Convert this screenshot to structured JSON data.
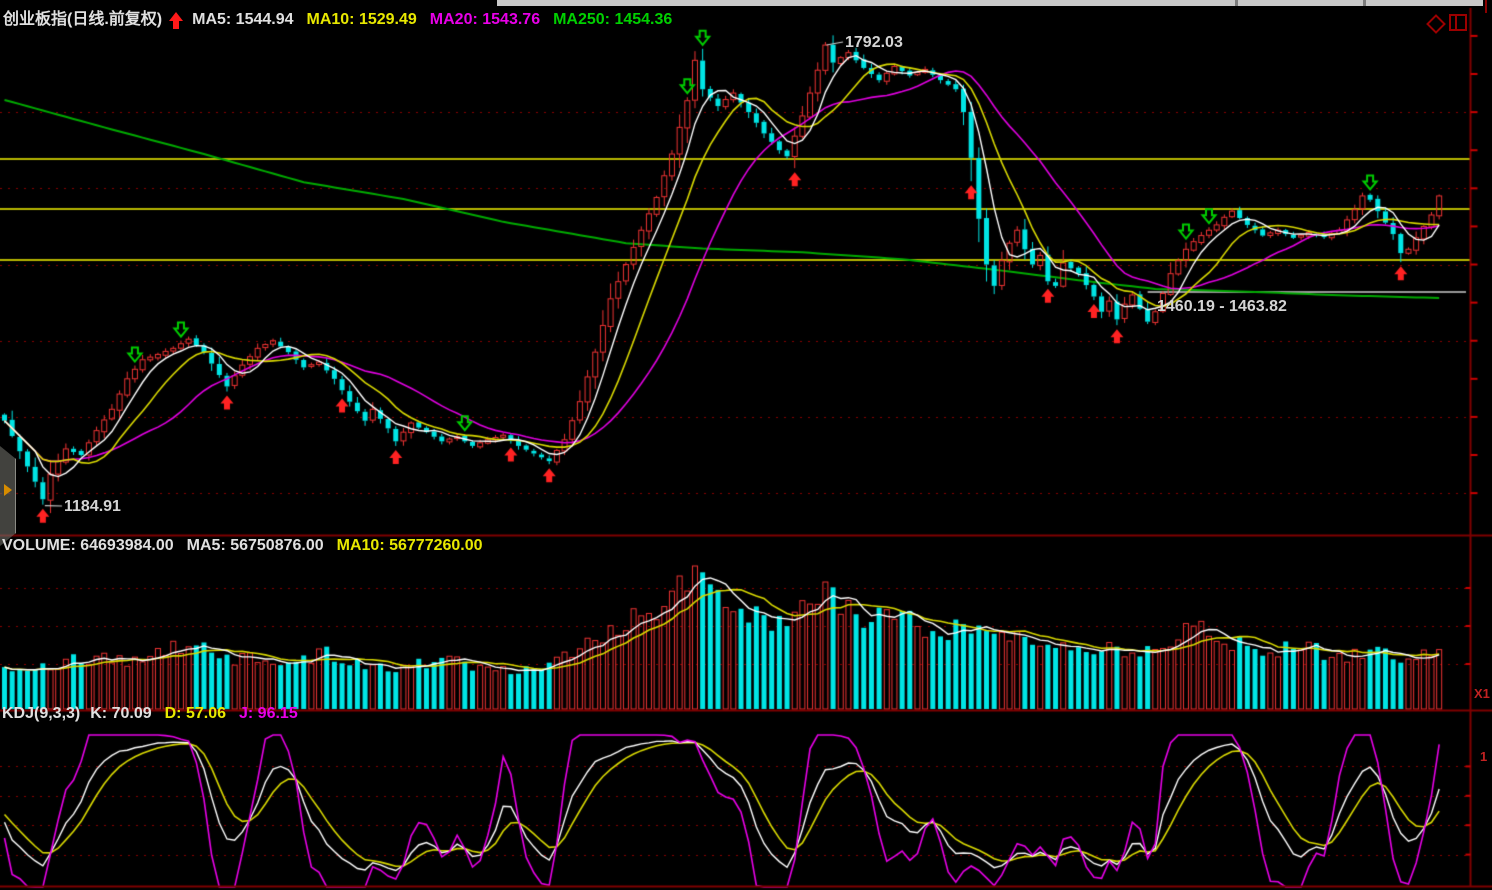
{
  "window": {
    "top_scrollbar": {
      "present": true
    },
    "icons": {
      "diamond": "diamond-icon",
      "window": "window-restore-icon"
    },
    "side_handle_icon": "panel-expand-arrow-icon"
  },
  "main_chart": {
    "legend": {
      "instrument": "创业板指(日线.前复权)",
      "trend_icon": "red-up-arrow-icon",
      "ma5": "MA5: 1544.94",
      "ma10": "MA10: 1529.49",
      "ma20": "MA20: 1543.76",
      "ma250": "MA250: 1454.36"
    },
    "annotations": {
      "high": "1792.03",
      "low": "1184.91",
      "range": "1460.19 - 1463.82"
    }
  },
  "volume_panel": {
    "legend": {
      "volume": "VOLUME: 64693984.00",
      "ma5": "MA5: 56750876.00",
      "ma10": "MA10: 56777260.00"
    },
    "axis_label": "X1"
  },
  "kdj_panel": {
    "legend": {
      "name": "KDJ(9,3,3)",
      "k": "K: 70.09",
      "d": "D: 57.06",
      "j": "J: 96.15"
    },
    "axis_label": "1"
  },
  "chart_data": {
    "type": "candlestick",
    "panels": [
      "price",
      "volume",
      "kdj"
    ],
    "bars": 188,
    "title": "创业板指 daily, forward-adjusted",
    "indicator_values": {
      "ma5": 1544.94,
      "ma10": 1529.49,
      "ma20": 1543.76,
      "ma250": 1454.36,
      "volume": 64693984.0,
      "vol_ma5": 56750876.0,
      "vol_ma10": 56777260.0,
      "k": 70.09,
      "d": 57.06,
      "j": 96.15
    },
    "annotated_high": 1792.03,
    "annotated_low": 1184.91,
    "annotated_range": [
      1460.19,
      1463.82
    ],
    "grid_prices": [
      1700,
      1600,
      1500,
      1400,
      1300,
      1200
    ],
    "yellow_levels": [
      1638,
      1573,
      1506
    ],
    "gray_level": {
      "price": 1464,
      "from_bar": 149,
      "to_bar": 187
    },
    "kdj_grid_values": [
      80,
      60,
      40,
      20
    ],
    "price_close_anchors": [
      [
        0,
        1295
      ],
      [
        2,
        1255
      ],
      [
        4,
        1215
      ],
      [
        5,
        1192
      ],
      [
        6,
        1225
      ],
      [
        8,
        1258
      ],
      [
        10,
        1250
      ],
      [
        12,
        1282
      ],
      [
        14,
        1310
      ],
      [
        16,
        1350
      ],
      [
        18,
        1375
      ],
      [
        20,
        1382
      ],
      [
        22,
        1390
      ],
      [
        24,
        1402
      ],
      [
        26,
        1385
      ],
      [
        28,
        1355
      ],
      [
        29,
        1340
      ],
      [
        31,
        1368
      ],
      [
        33,
        1390
      ],
      [
        35,
        1400
      ],
      [
        37,
        1385
      ],
      [
        39,
        1365
      ],
      [
        41,
        1372
      ],
      [
        43,
        1350
      ],
      [
        45,
        1320
      ],
      [
        47,
        1295
      ],
      [
        48,
        1310
      ],
      [
        50,
        1285
      ],
      [
        51,
        1268
      ],
      [
        53,
        1292
      ],
      [
        55,
        1280
      ],
      [
        57,
        1268
      ],
      [
        59,
        1274
      ],
      [
        61,
        1262
      ],
      [
        63,
        1270
      ],
      [
        65,
        1276
      ],
      [
        67,
        1262
      ],
      [
        69,
        1252
      ],
      [
        71,
        1242
      ],
      [
        73,
        1270
      ],
      [
        75,
        1320
      ],
      [
        77,
        1385
      ],
      [
        79,
        1455
      ],
      [
        81,
        1500
      ],
      [
        83,
        1545
      ],
      [
        85,
        1588
      ],
      [
        87,
        1645
      ],
      [
        89,
        1715
      ],
      [
        90,
        1768
      ],
      [
        91,
        1730
      ],
      [
        93,
        1708
      ],
      [
        95,
        1725
      ],
      [
        97,
        1700
      ],
      [
        99,
        1672
      ],
      [
        101,
        1650
      ],
      [
        102,
        1642
      ],
      [
        104,
        1695
      ],
      [
        106,
        1755
      ],
      [
        107,
        1788
      ],
      [
        108,
        1765
      ],
      [
        110,
        1778
      ],
      [
        112,
        1758
      ],
      [
        114,
        1742
      ],
      [
        116,
        1760
      ],
      [
        118,
        1748
      ],
      [
        120,
        1756
      ],
      [
        122,
        1742
      ],
      [
        124,
        1730
      ],
      [
        125,
        1700
      ],
      [
        126,
        1640
      ],
      [
        127,
        1560
      ],
      [
        128,
        1500
      ],
      [
        129,
        1472
      ],
      [
        130,
        1505
      ],
      [
        131,
        1528
      ],
      [
        132,
        1545
      ],
      [
        133,
        1520
      ],
      [
        134,
        1500
      ],
      [
        135,
        1512
      ],
      [
        136,
        1478
      ],
      [
        137,
        1472
      ],
      [
        138,
        1502
      ],
      [
        140,
        1488
      ],
      [
        142,
        1458
      ],
      [
        143,
        1438
      ],
      [
        144,
        1452
      ],
      [
        145,
        1428
      ],
      [
        146,
        1448
      ],
      [
        147,
        1460
      ],
      [
        148,
        1442
      ],
      [
        149,
        1425
      ],
      [
        150,
        1438
      ],
      [
        151,
        1462
      ],
      [
        152,
        1488
      ],
      [
        153,
        1505
      ],
      [
        154,
        1520
      ],
      [
        155,
        1530
      ],
      [
        156,
        1538
      ],
      [
        157,
        1545
      ],
      [
        158,
        1552
      ],
      [
        159,
        1562
      ],
      [
        160,
        1570
      ],
      [
        162,
        1552
      ],
      [
        164,
        1538
      ],
      [
        166,
        1545
      ],
      [
        168,
        1535
      ],
      [
        170,
        1542
      ],
      [
        172,
        1536
      ],
      [
        174,
        1545
      ],
      [
        176,
        1572
      ],
      [
        177,
        1590
      ],
      [
        178,
        1585
      ],
      [
        179,
        1570
      ],
      [
        180,
        1555
      ],
      [
        181,
        1540
      ],
      [
        182,
        1515
      ],
      [
        183,
        1520
      ],
      [
        184,
        1535
      ],
      [
        185,
        1550
      ],
      [
        186,
        1565
      ],
      [
        187,
        1590
      ]
    ],
    "ma250_anchors": [
      [
        0,
        1716
      ],
      [
        13,
        1680
      ],
      [
        26,
        1645
      ],
      [
        39,
        1608
      ],
      [
        52,
        1586
      ],
      [
        65,
        1556
      ],
      [
        81,
        1528
      ],
      [
        91,
        1521
      ],
      [
        104,
        1516
      ],
      [
        117,
        1507
      ],
      [
        130,
        1492
      ],
      [
        142,
        1477
      ],
      [
        150,
        1468
      ],
      [
        163,
        1464
      ],
      [
        173,
        1460
      ],
      [
        187,
        1456
      ]
    ],
    "volume_anchors_millions": [
      [
        0,
        42
      ],
      [
        4,
        38
      ],
      [
        8,
        46
      ],
      [
        12,
        50
      ],
      [
        16,
        46
      ],
      [
        20,
        54
      ],
      [
        24,
        62
      ],
      [
        27,
        58
      ],
      [
        30,
        48
      ],
      [
        34,
        46
      ],
      [
        38,
        45
      ],
      [
        42,
        52
      ],
      [
        46,
        45
      ],
      [
        50,
        40
      ],
      [
        54,
        43
      ],
      [
        58,
        46
      ],
      [
        62,
        40
      ],
      [
        66,
        38
      ],
      [
        70,
        43
      ],
      [
        73,
        52
      ],
      [
        76,
        64
      ],
      [
        79,
        74
      ],
      [
        82,
        88
      ],
      [
        85,
        98
      ],
      [
        87,
        112
      ],
      [
        89,
        120
      ],
      [
        91,
        130
      ],
      [
        93,
        122
      ],
      [
        95,
        102
      ],
      [
        97,
        88
      ],
      [
        99,
        82
      ],
      [
        101,
        78
      ],
      [
        103,
        84
      ],
      [
        105,
        100
      ],
      [
        107,
        112
      ],
      [
        109,
        100
      ],
      [
        111,
        90
      ],
      [
        113,
        86
      ],
      [
        115,
        84
      ],
      [
        117,
        86
      ],
      [
        119,
        80
      ],
      [
        121,
        78
      ],
      [
        124,
        76
      ],
      [
        127,
        72
      ],
      [
        130,
        70
      ],
      [
        133,
        66
      ],
      [
        136,
        63
      ],
      [
        139,
        65
      ],
      [
        142,
        60
      ],
      [
        145,
        58
      ],
      [
        148,
        56
      ],
      [
        151,
        62
      ],
      [
        154,
        78
      ],
      [
        157,
        70
      ],
      [
        160,
        64
      ],
      [
        163,
        60
      ],
      [
        166,
        58
      ],
      [
        169,
        56
      ],
      [
        172,
        54
      ],
      [
        175,
        52
      ],
      [
        178,
        56
      ],
      [
        181,
        52
      ],
      [
        184,
        50
      ],
      [
        187,
        62
      ]
    ],
    "red_up_arrow_bars": [
      5,
      29,
      44,
      51,
      66,
      71,
      103,
      126,
      136,
      142,
      145,
      182
    ],
    "green_down_arrow_bars": [
      17,
      23,
      60,
      89,
      91,
      154,
      157,
      178
    ],
    "colors": {
      "background": "#000000",
      "up": "#ee3333",
      "down": "#00e5e5",
      "ma5": "#ffffff",
      "ma10": "#d8d800",
      "ma20": "#e000e0",
      "ma250": "#00aa00",
      "grid_dotted": "#8a0000",
      "frame": "#7f0000",
      "tick": "#cc0000",
      "level_yellow": "#b8b800",
      "level_gray": "#999999",
      "signal_red": "#ff2222",
      "signal_green": "#00cc00",
      "vol_ma5": "#ffffff",
      "vol_ma10": "#d8d800",
      "kdj_k": "#ffffff",
      "kdj_d": "#d8d800",
      "kdj_j": "#e800e8"
    }
  }
}
